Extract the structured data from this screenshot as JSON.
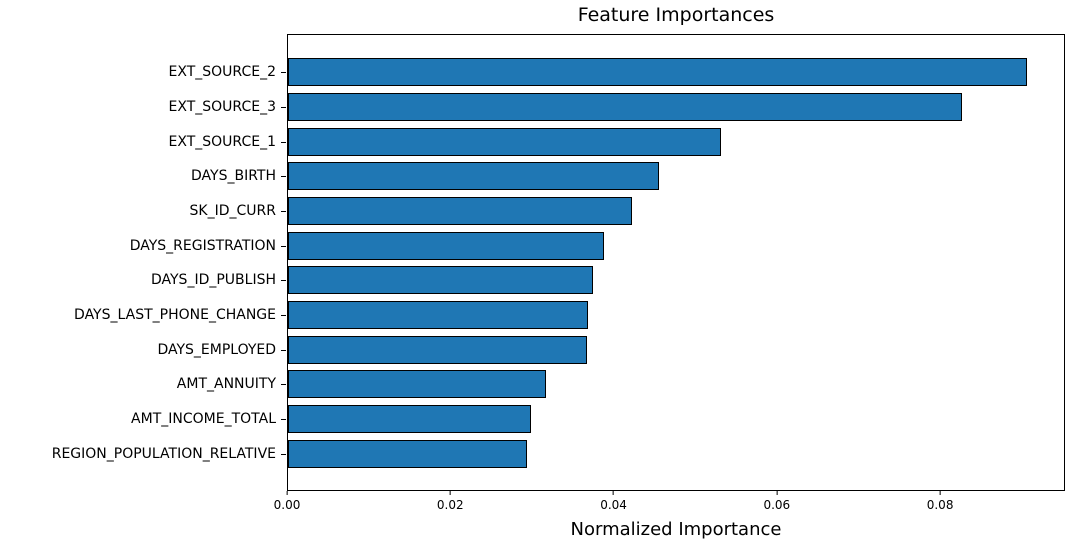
{
  "figure": {
    "background_color": "#ffffff",
    "text_color": "#000000"
  },
  "chart_data": {
    "type": "bar",
    "orientation": "horizontal",
    "title": "Feature Importances",
    "xlabel": "Normalized Importance",
    "ylabel": "",
    "categories": [
      "EXT_SOURCE_2",
      "EXT_SOURCE_3",
      "EXT_SOURCE_1",
      "DAYS_BIRTH",
      "SK_ID_CURR",
      "DAYS_REGISTRATION",
      "DAYS_ID_PUBLISH",
      "DAYS_LAST_PHONE_CHANGE",
      "DAYS_EMPLOYED",
      "AMT_ANNUITY",
      "AMT_INCOME_TOTAL",
      "REGION_POPULATION_RELATIVE"
    ],
    "values": [
      0.0907,
      0.0828,
      0.0532,
      0.0456,
      0.0422,
      0.0388,
      0.0374,
      0.0369,
      0.0367,
      0.0317,
      0.0298,
      0.0293
    ],
    "xlim": [
      0,
      0.0953
    ],
    "xticks": [
      0.0,
      0.02,
      0.04,
      0.06,
      0.08
    ],
    "xtick_labels": [
      "0.00",
      "0.02",
      "0.04",
      "0.06",
      "0.08"
    ],
    "grid": false,
    "legend": "none",
    "bar_color": "#1f77b4",
    "bar_edge_color": "#000000"
  }
}
